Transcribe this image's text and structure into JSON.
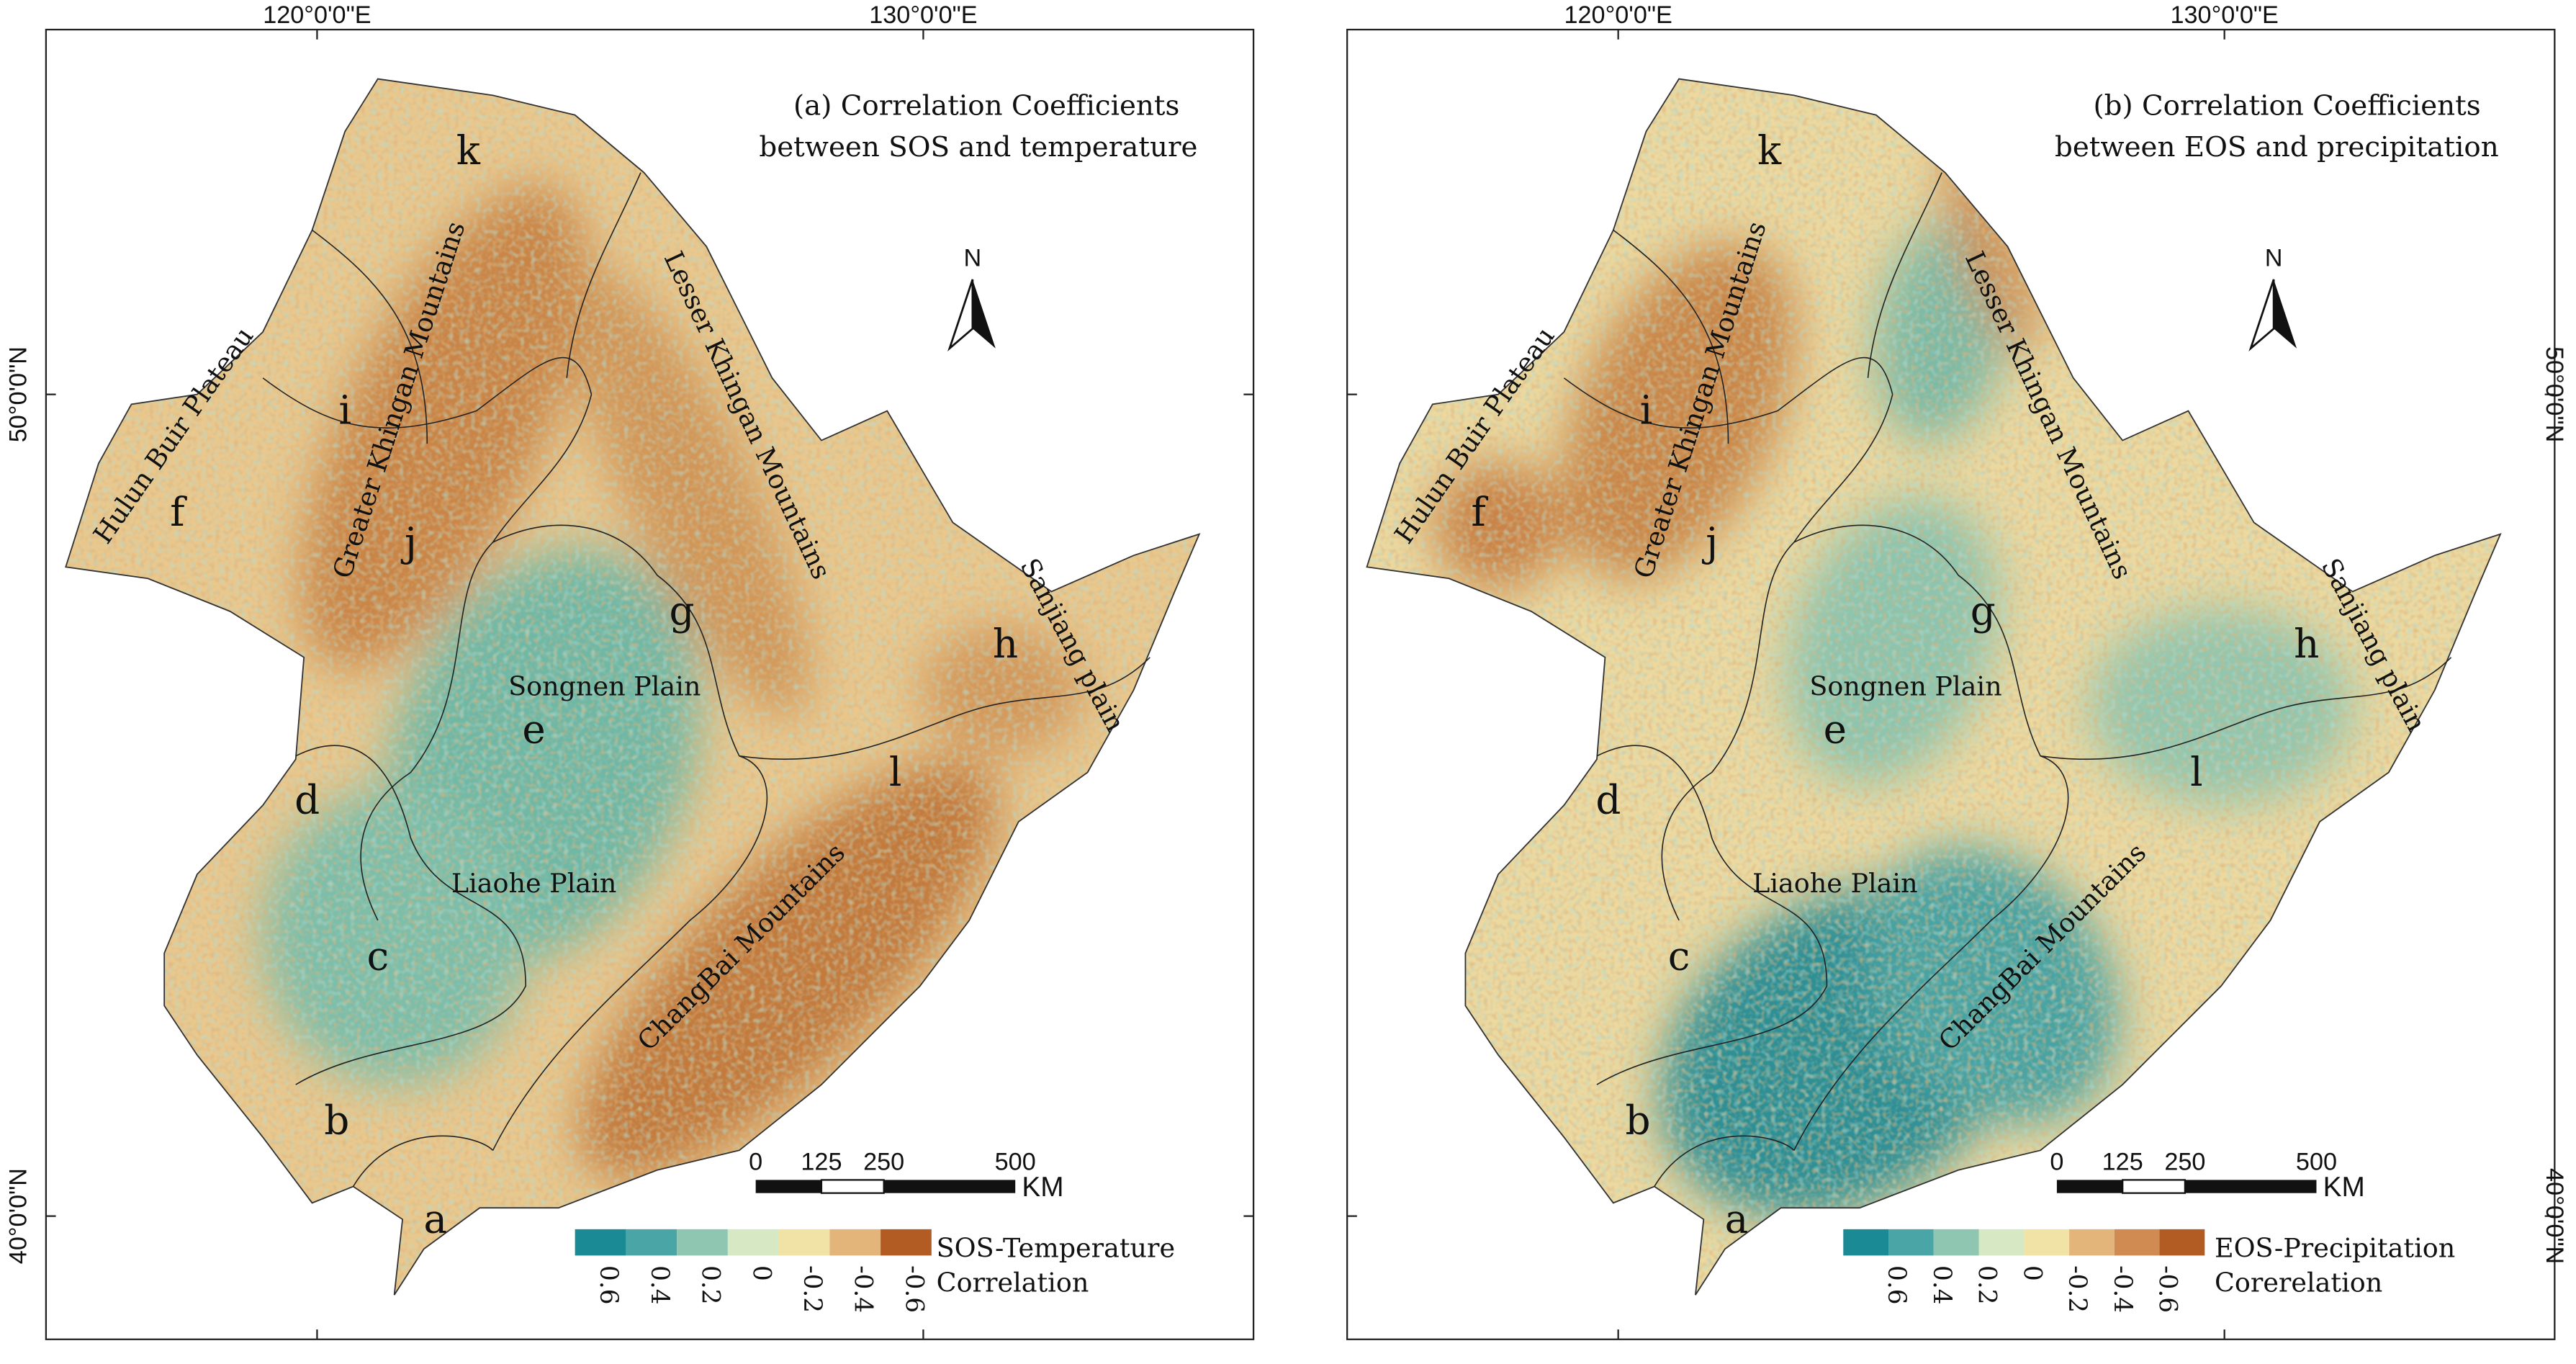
{
  "panels": [
    {
      "title": [
        "(a) Correlation Coefficients",
        "between SOS and temperature"
      ],
      "lon_labels": [
        "120°0'0\"E",
        "130°0'0\"E"
      ],
      "lat_labels": [
        "50°0'0\"N",
        "40°0'0\"N"
      ],
      "north": "N",
      "regions": [
        "a",
        "b",
        "c",
        "d",
        "e",
        "f",
        "g",
        "h",
        "i",
        "j",
        "k",
        "l"
      ],
      "places": [
        "Hulun Buir Plateau",
        "Greater Khingan Mountains",
        "Lesser Khingan Mountains",
        "Songnen Plain",
        "Liaohe Plain",
        "ChangBai Mountains",
        "Sanjiang plain"
      ],
      "scale": {
        "ticks": [
          "0",
          "125",
          "250",
          "500"
        ],
        "unit": "KM"
      },
      "legend": {
        "ticks": [
          "0.6",
          "0.4",
          "0.2",
          "0",
          "-0.2",
          "-0.4",
          "-0.6"
        ],
        "title": [
          "SOS-Temperature",
          "Correlation"
        ]
      }
    },
    {
      "title": [
        "(b) Correlation Coefficients",
        "between EOS and precipitation"
      ],
      "lon_labels": [
        "120°0'0\"E",
        "130°0'0\"E"
      ],
      "lat_labels": [
        "50°0'0\"N",
        "40°0'0\"N"
      ],
      "north": "N",
      "regions": [
        "a",
        "b",
        "c",
        "d",
        "e",
        "f",
        "g",
        "h",
        "i",
        "j",
        "k",
        "l"
      ],
      "places": [
        "Hulun Buir Plateau",
        "Greater Khingan Mountains",
        "Lesser Khingan Mountains",
        "Songnen Plain",
        "Liaohe Plain",
        "ChangBai Mountains",
        "Sanjiang plain"
      ],
      "scale": {
        "ticks": [
          "0",
          "125",
          "250",
          "500"
        ],
        "unit": "KM"
      },
      "legend": {
        "ticks": [
          "0.6",
          "0.4",
          "0.2",
          "0",
          "-0.2",
          "-0.4",
          "-0.6"
        ],
        "title": [
          "EOS-Precipitation",
          "Corerelation"
        ]
      }
    }
  ]
}
